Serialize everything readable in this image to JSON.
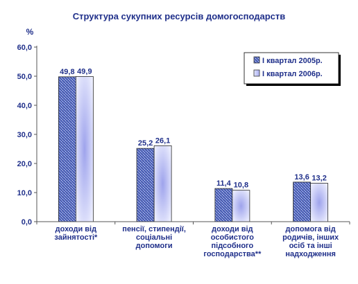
{
  "chart_data": {
    "type": "bar",
    "title": "Структура сукупних ресурсів домогосподарств",
    "ylabel": "%",
    "xlabel": "",
    "ylim": [
      0,
      60
    ],
    "yticks": [
      "0,0",
      "10,0",
      "20,0",
      "30,0",
      "40,0",
      "50,0",
      "60,0"
    ],
    "ytick_values": [
      0,
      10,
      20,
      30,
      40,
      50,
      60
    ],
    "grid": false,
    "legend_position": "top-right",
    "categories": [
      [
        "доходи від",
        "зайнятості*"
      ],
      [
        "пенсії, стипендії,",
        "соціальні",
        "допомоги"
      ],
      [
        "доходи від",
        "особистого",
        "підсобного",
        "господарства**"
      ],
      [
        "допомога від",
        "родичів, інших",
        "осіб та інші",
        "надходження"
      ]
    ],
    "series": [
      {
        "name": "І квартал 2005р.",
        "values": [
          49.8,
          25.2,
          11.4,
          13.6
        ],
        "labels": [
          "49,8",
          "25,2",
          "11,4",
          "13,6"
        ],
        "color": "#4a5fb0"
      },
      {
        "name": "І квартал 2006р.",
        "values": [
          49.9,
          26.1,
          10.8,
          13.2
        ],
        "labels": [
          "49,9",
          "26,1",
          "10,8",
          "13,2"
        ],
        "color": "#b8bdf0"
      }
    ]
  }
}
